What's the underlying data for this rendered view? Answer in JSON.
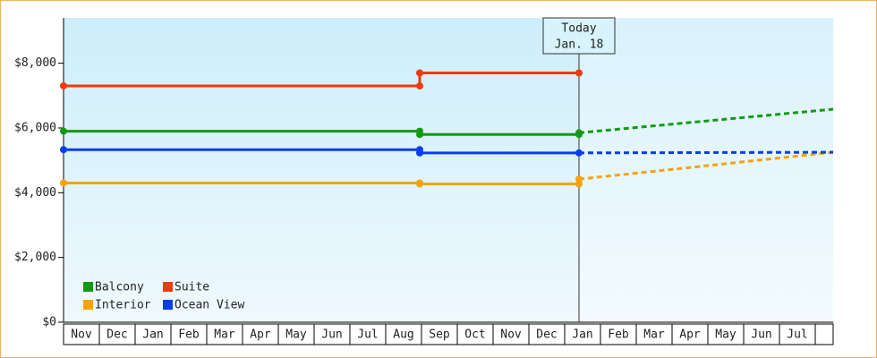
{
  "chart_data": {
    "type": "step-line",
    "categories": [
      "Nov",
      "Dec",
      "Jan",
      "Feb",
      "Mar",
      "Apr",
      "May",
      "Jun",
      "Jul",
      "Aug",
      "Sep",
      "Oct",
      "Nov",
      "Dec",
      "Jan",
      "Feb",
      "Mar",
      "Apr",
      "May",
      "Jun",
      "Jul"
    ],
    "xlim": [
      0,
      21.5
    ],
    "ylim": [
      0,
      9400
    ],
    "yticks": [
      {
        "value": 0,
        "label": "$0"
      },
      {
        "value": 2000,
        "label": "$2,000"
      },
      {
        "value": 4000,
        "label": "$4,000"
      },
      {
        "value": 6000,
        "label": "$6,000"
      },
      {
        "value": 8000,
        "label": "$8,000"
      }
    ],
    "annotation": [
      "Today",
      "Jan. 18"
    ],
    "series": [
      {
        "name": "Balcony",
        "color": "#129a12",
        "x": [
          0,
          9.95,
          9.95,
          14.4,
          14.4
        ],
        "values": [
          5900,
          5900,
          5800,
          5800,
          5850
        ],
        "forecast_x": [
          14.4,
          21.5
        ],
        "forecast_values": [
          5850,
          6580
        ]
      },
      {
        "name": "Suite",
        "color": "#ee3a0c",
        "x": [
          0,
          9.95,
          9.95,
          14.4
        ],
        "values": [
          7300,
          7300,
          7700,
          7700
        ]
      },
      {
        "name": "Interior",
        "color": "#f5a20f",
        "x": [
          0,
          9.95,
          9.95,
          14.4,
          14.4
        ],
        "values": [
          4300,
          4300,
          4270,
          4270,
          4420
        ],
        "forecast_x": [
          14.4,
          17,
          21.5
        ],
        "forecast_values": [
          4420,
          4720,
          5250
        ]
      },
      {
        "name": "Ocean View",
        "color": "#0b3cf0",
        "x": [
          0,
          9.95,
          9.95,
          14.4
        ],
        "values": [
          5330,
          5330,
          5230,
          5230
        ],
        "forecast_x": [
          14.4,
          21.5
        ],
        "forecast_values": [
          5230,
          5250
        ]
      }
    ]
  }
}
